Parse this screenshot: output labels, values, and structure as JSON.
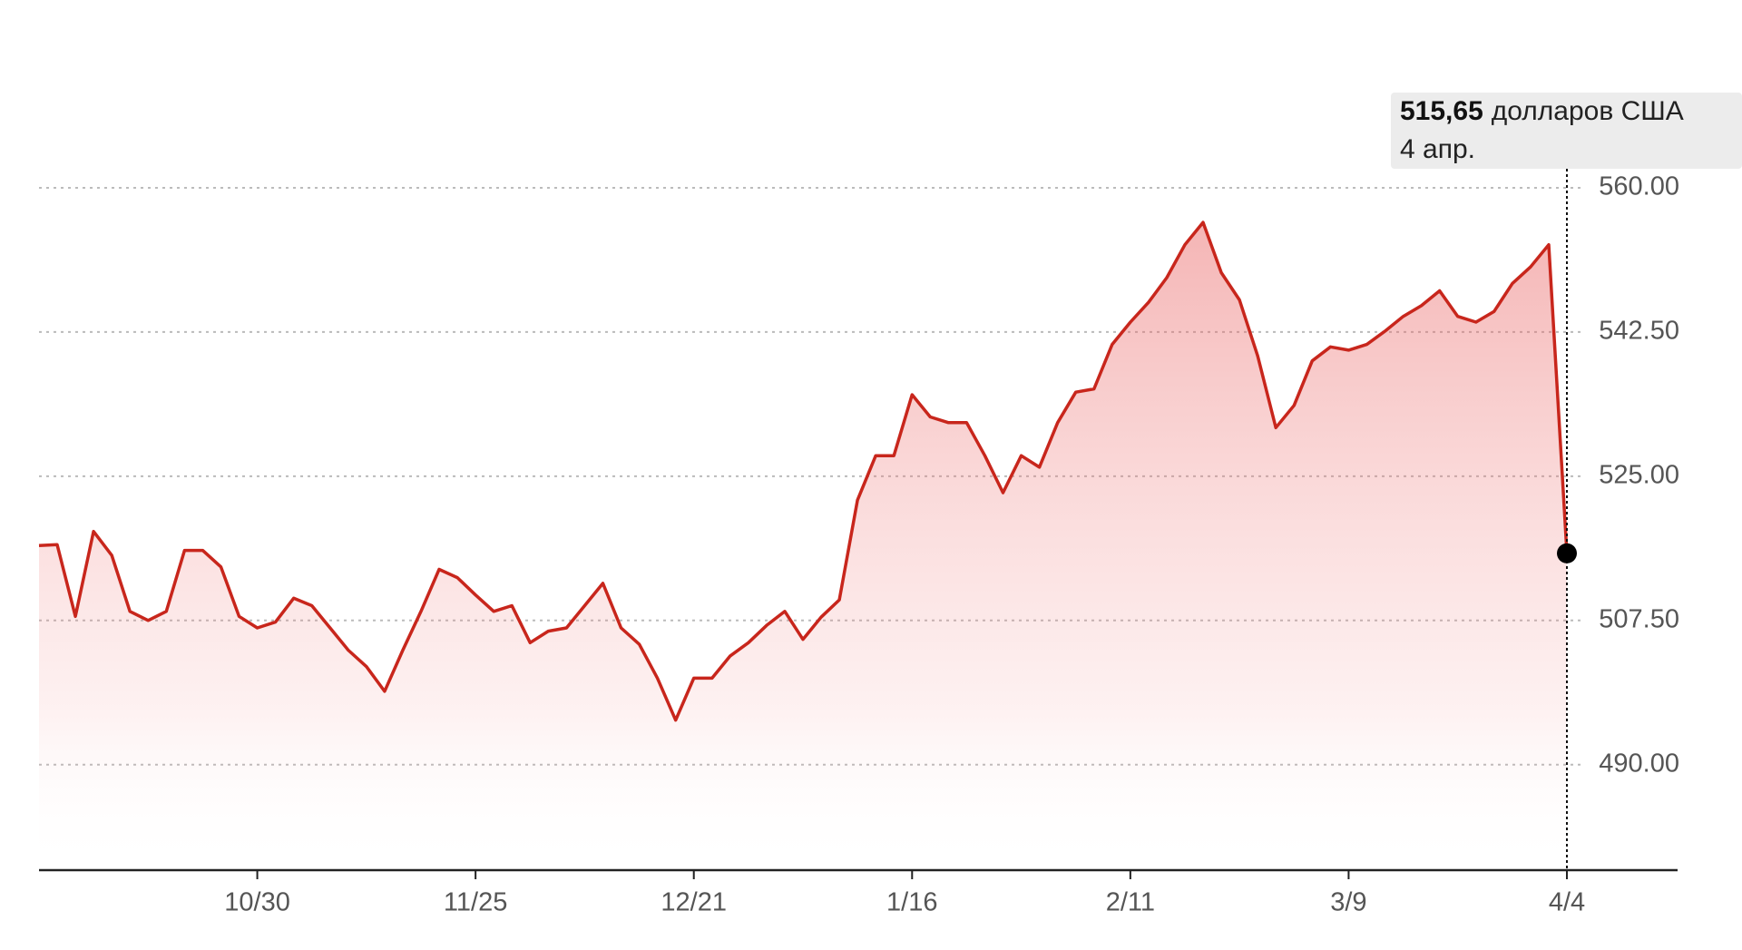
{
  "chart_data": {
    "type": "area",
    "color": "#c8261c",
    "categories": [
      null,
      null,
      null,
      null,
      null,
      null,
      null,
      null,
      null,
      null,
      null,
      null,
      "10/30",
      null,
      null,
      null,
      null,
      null,
      null,
      null,
      null,
      null,
      null,
      null,
      "11/25",
      null,
      null,
      null,
      null,
      null,
      null,
      null,
      null,
      null,
      null,
      null,
      "12/21",
      null,
      null,
      null,
      null,
      null,
      null,
      null,
      null,
      null,
      null,
      null,
      "1/16",
      null,
      null,
      null,
      null,
      null,
      null,
      null,
      null,
      null,
      null,
      null,
      "2/11",
      null,
      null,
      null,
      null,
      null,
      null,
      null,
      null,
      null,
      null,
      null,
      "3/9",
      null,
      null,
      null,
      null,
      null,
      null,
      null,
      null,
      null,
      null,
      null,
      "4/4"
    ],
    "values": [
      516.6,
      516.7,
      508.0,
      518.3,
      515.4,
      508.6,
      507.5,
      508.6,
      516.0,
      516.0,
      514.0,
      508.0,
      506.6,
      507.3,
      510.2,
      509.3,
      506.6,
      503.9,
      501.9,
      498.9,
      503.9,
      508.6,
      513.7,
      512.7,
      510.6,
      508.6,
      509.3,
      504.8,
      506.2,
      506.6,
      509.3,
      512.0,
      506.6,
      504.6,
      500.5,
      495.4,
      500.5,
      500.5,
      503.2,
      504.8,
      506.9,
      508.6,
      505.2,
      507.9,
      510.0,
      522.1,
      527.5,
      527.5,
      534.9,
      532.2,
      531.5,
      531.5,
      527.5,
      523.0,
      527.5,
      526.1,
      531.5,
      535.2,
      535.6,
      541.0,
      543.7,
      546.1,
      549.1,
      553.1,
      555.8,
      549.7,
      546.4,
      539.6,
      530.9,
      533.6,
      539.0,
      540.7,
      540.3,
      541.0,
      542.6,
      544.4,
      545.7,
      547.5,
      544.4,
      543.7,
      545.0,
      548.4,
      550.4,
      553.1,
      515.65
    ],
    "ylim": [
      477.2,
      560
    ],
    "yticks": [
      {
        "value": 490,
        "label": "490.00"
      },
      {
        "value": 507.5,
        "label": "507.50"
      },
      {
        "value": 525,
        "label": "525.00"
      },
      {
        "value": 542.5,
        "label": "542.50"
      },
      {
        "value": 560,
        "label": "560.00"
      }
    ],
    "grid": true,
    "tooltip": {
      "value": 515.65,
      "label": "515,65",
      "unit": "долларов США",
      "date": "4 апр."
    }
  }
}
